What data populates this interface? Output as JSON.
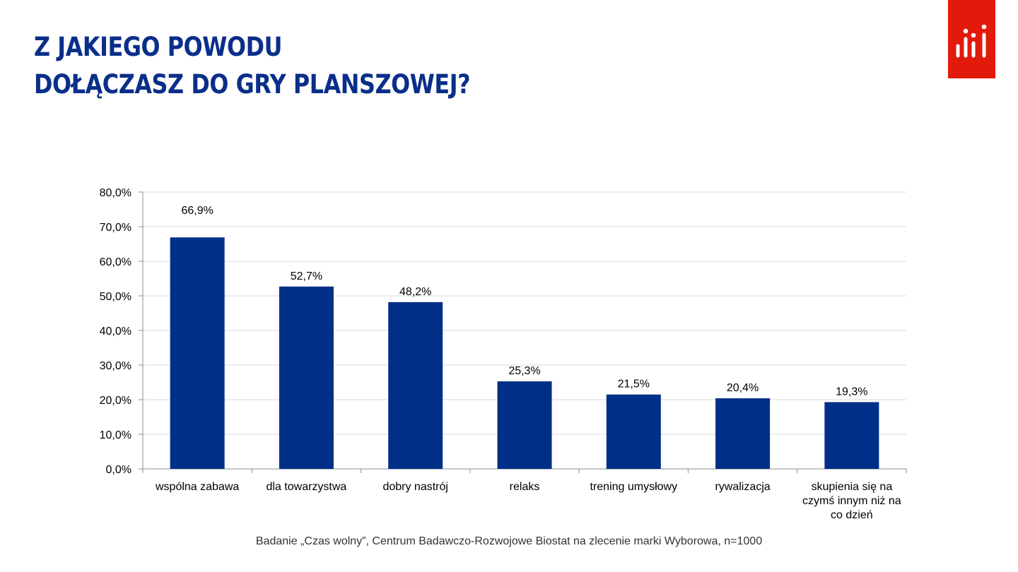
{
  "header": {
    "title_line1": "Z JAKIEGO POWODU",
    "title_line2": "DOŁĄCZASZ DO GRY PLANSZOWEJ?"
  },
  "logo": {
    "icon": "bar-dots-logo",
    "color": "#e11a0c"
  },
  "chart_data": {
    "type": "bar",
    "categories": [
      [
        "wspólna zabawa"
      ],
      [
        "dla towarzystwa"
      ],
      [
        "dobry nastrój"
      ],
      [
        "relaks"
      ],
      [
        "trening umysłowy"
      ],
      [
        "rywalizacja"
      ],
      [
        "skupienia się na",
        "czymś innym niż na",
        "co dzień"
      ]
    ],
    "values": [
      66.9,
      52.7,
      48.2,
      25.3,
      21.5,
      20.4,
      19.3
    ],
    "value_labels": [
      "66,9%",
      "52,7%",
      "48,2%",
      "25,3%",
      "21,5%",
      "20,4%",
      "19,3%"
    ],
    "ylim": [
      0,
      80
    ],
    "yticks": [
      0,
      10,
      20,
      30,
      40,
      50,
      60,
      70,
      80
    ],
    "ytick_labels": [
      "0,0%",
      "10,0%",
      "20,0%",
      "30,0%",
      "40,0%",
      "50,0%",
      "60,0%",
      "70,0%",
      "80,0%"
    ],
    "grid": true,
    "bar_color": "#002f87",
    "title": "",
    "xlabel": "",
    "ylabel": ""
  },
  "footer": {
    "source": "Badanie „Czas wolny”, Centrum Badawczo-Rozwojowe Biostat na zlecenie marki Wyborowa, n=1000"
  }
}
